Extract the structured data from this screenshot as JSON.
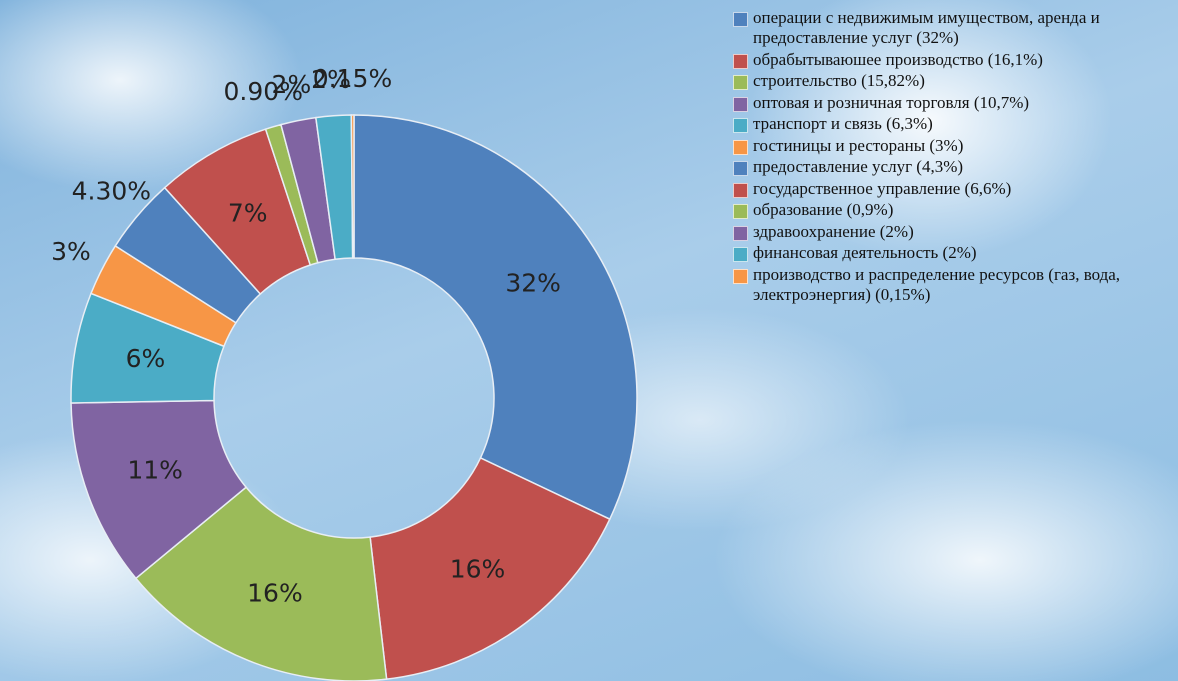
{
  "chart_data": {
    "type": "donut",
    "categories": [
      "операции с недвижимым имуществом, аренда и предоставление услуг (32%)",
      "обрабытываюшее производство (16,1%)",
      "строительство (15,82%)",
      "оптовая и розничная торговля (10,7%)",
      "транспорт и связь (6,3%)",
      "гостиницы и рестораны (3%)",
      "предоставление услуг (4,3%)",
      "государственное управление (6,6%)",
      "образование (0,9%)",
      "здравоохранение (2%)",
      "финансовая деятельность (2%)",
      "производство и распределение ресурсов (газ, вода, электроэнергия) (0,15%)"
    ],
    "values": [
      32,
      16.1,
      15.82,
      10.7,
      6.3,
      3,
      4.3,
      6.6,
      0.9,
      2,
      2,
      0.15
    ],
    "value_labels": [
      "32%",
      "16%",
      "16%",
      "11%",
      "6%",
      "3%",
      "4.30%",
      "7%",
      "0.90%",
      "2%",
      "2%",
      "0.15%"
    ],
    "colors": [
      "#4f81bd",
      "#c0504d",
      "#9bbb59",
      "#8064a2",
      "#4bacc6",
      "#f79646",
      "#4f81bd",
      "#c0504d",
      "#9bbb59",
      "#8064a2",
      "#4bacc6",
      "#f79646"
    ],
    "legend": "right"
  }
}
